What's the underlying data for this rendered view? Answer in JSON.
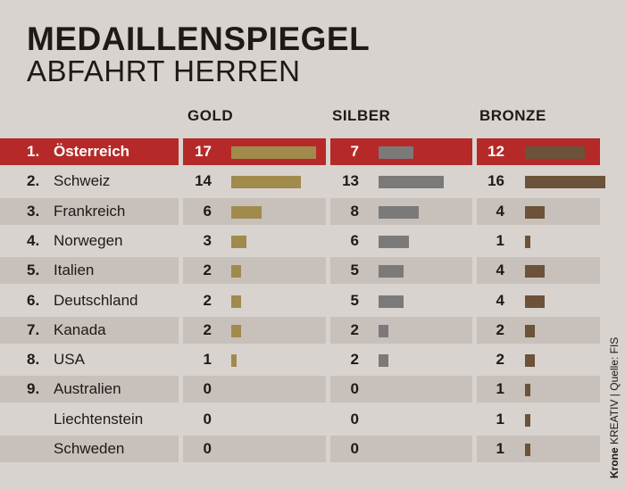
{
  "title": "MEDAILLENSPIEGEL",
  "subtitle": "ABFAHRT HERREN",
  "colors": {
    "gold": "#a08a4c",
    "silver": "#7c7979",
    "bronze": "#6b5238",
    "highlight": "#b52a28"
  },
  "chart_data": {
    "type": "table",
    "columns": [
      "GOLD",
      "SILBER",
      "BRONZE"
    ],
    "rows": [
      {
        "rank": "1.",
        "country": "Österreich",
        "gold": 17,
        "silver": 7,
        "bronze": 12,
        "highlight": true
      },
      {
        "rank": "2.",
        "country": "Schweiz",
        "gold": 14,
        "silver": 13,
        "bronze": 16
      },
      {
        "rank": "3.",
        "country": "Frankreich",
        "gold": 6,
        "silver": 8,
        "bronze": 4
      },
      {
        "rank": "4.",
        "country": "Norwegen",
        "gold": 3,
        "silver": 6,
        "bronze": 1
      },
      {
        "rank": "5.",
        "country": "Italien",
        "gold": 2,
        "silver": 5,
        "bronze": 4
      },
      {
        "rank": "6.",
        "country": "Deutschland",
        "gold": 2,
        "silver": 5,
        "bronze": 4
      },
      {
        "rank": "7.",
        "country": "Kanada",
        "gold": 2,
        "silver": 2,
        "bronze": 2
      },
      {
        "rank": "8.",
        "country": "USA",
        "gold": 1,
        "silver": 2,
        "bronze": 2
      },
      {
        "rank": "9.",
        "country": "Australien",
        "gold": 0,
        "silver": 0,
        "bronze": 1
      },
      {
        "rank": "",
        "country": "Liechtenstein",
        "gold": 0,
        "silver": 0,
        "bronze": 1
      },
      {
        "rank": "",
        "country": "Schweden",
        "gold": 0,
        "silver": 0,
        "bronze": 1
      }
    ]
  },
  "credit": {
    "brand": "Krone",
    "brand_suffix": " KREATIV",
    "separator": "  |  ",
    "source": "Quelle: FIS"
  }
}
